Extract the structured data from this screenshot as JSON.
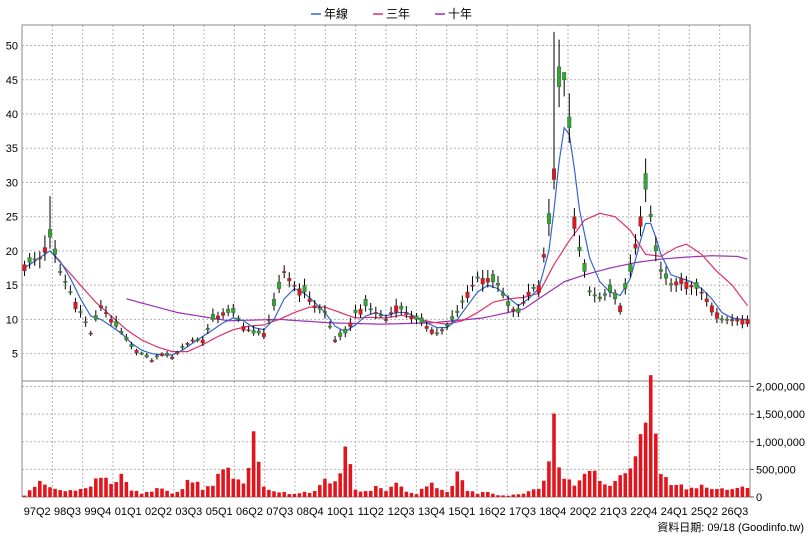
{
  "chart_data": {
    "type": "candlestick",
    "legend": [
      {
        "name": "年線",
        "color": "#3366cc"
      },
      {
        "name": "三年",
        "color": "#e0306a"
      },
      {
        "name": "十年",
        "color": "#9b2fb4"
      }
    ],
    "legend_position": "top-center",
    "grid": true,
    "colors": {
      "up": "#e4141c",
      "down": "#2fa82f",
      "wick": "#000000",
      "volume": "#e4141c"
    },
    "price_axis": {
      "ticks": [
        5,
        10,
        15,
        20,
        25,
        30,
        35,
        40,
        45,
        50
      ],
      "ylim": [
        1,
        53
      ]
    },
    "volume_axis": {
      "ticks": [
        0,
        500000,
        1000000,
        1500000,
        2000000
      ],
      "tick_labels": [
        "0",
        "500,000",
        "1,000,000",
        "1,500,000",
        "2,000,000"
      ],
      "ylim": [
        0,
        2100000
      ]
    },
    "x_tick_labels": [
      "97Q2",
      "98Q3",
      "99Q4",
      "01Q1",
      "02Q2",
      "03Q3",
      "05Q1",
      "06Q2",
      "07Q3",
      "08Q4",
      "10Q1",
      "11Q2",
      "12Q3",
      "13Q4",
      "15Q1",
      "16Q2",
      "17Q3",
      "18Q4",
      "20Q2",
      "21Q3",
      "22Q4",
      "24Q1",
      "25Q2",
      "26Q3"
    ],
    "footer": "資料日期: 09/18 (Goodinfo.tw)",
    "anchors": {
      "close": [
        [
          0,
          18
        ],
        [
          3,
          19
        ],
        [
          5,
          22
        ],
        [
          7,
          17
        ],
        [
          9,
          14
        ],
        [
          11,
          11
        ],
        [
          13,
          8
        ],
        [
          15,
          12
        ],
        [
          17,
          10
        ],
        [
          19,
          8
        ],
        [
          21,
          6
        ],
        [
          23,
          5
        ],
        [
          25,
          4
        ],
        [
          27,
          5
        ],
        [
          29,
          4.5
        ],
        [
          31,
          6
        ],
        [
          33,
          7
        ],
        [
          35,
          7
        ],
        [
          37,
          10
        ],
        [
          39,
          11
        ],
        [
          41,
          11
        ],
        [
          43,
          9
        ],
        [
          45,
          8
        ],
        [
          47,
          8
        ],
        [
          49,
          12
        ],
        [
          51,
          17
        ],
        [
          53,
          15
        ],
        [
          55,
          14
        ],
        [
          57,
          12
        ],
        [
          59,
          11
        ],
        [
          61,
          7
        ],
        [
          63,
          8
        ],
        [
          65,
          11
        ],
        [
          67,
          12
        ],
        [
          69,
          11
        ],
        [
          71,
          10
        ],
        [
          73,
          12
        ],
        [
          75,
          11
        ],
        [
          77,
          10
        ],
        [
          79,
          9
        ],
        [
          81,
          8
        ],
        [
          83,
          9
        ],
        [
          85,
          11
        ],
        [
          87,
          14
        ],
        [
          89,
          16
        ],
        [
          91,
          16
        ],
        [
          93,
          15
        ],
        [
          95,
          12
        ],
        [
          97,
          11
        ],
        [
          99,
          14
        ],
        [
          101,
          15
        ],
        [
          103,
          24
        ],
        [
          104,
          32
        ],
        [
          105,
          44
        ],
        [
          106,
          45
        ],
        [
          107,
          38
        ],
        [
          108,
          25
        ],
        [
          109,
          20
        ],
        [
          111,
          14
        ],
        [
          113,
          13
        ],
        [
          115,
          14
        ],
        [
          117,
          12
        ],
        [
          119,
          17
        ],
        [
          121,
          25
        ],
        [
          122,
          29
        ],
        [
          123,
          25
        ],
        [
          124,
          20
        ],
        [
          125,
          17
        ],
        [
          127,
          15
        ],
        [
          129,
          16
        ],
        [
          131,
          15
        ],
        [
          133,
          14
        ],
        [
          135,
          12
        ],
        [
          137,
          10
        ],
        [
          139,
          10
        ],
        [
          141,
          10
        ],
        [
          142,
          10
        ]
      ],
      "ma1": [
        [
          0,
          17.5
        ],
        [
          3,
          19
        ],
        [
          5,
          20
        ],
        [
          7,
          18.5
        ],
        [
          9,
          16
        ],
        [
          11,
          13
        ],
        [
          13,
          10.5
        ],
        [
          15,
          10
        ],
        [
          17,
          9
        ],
        [
          19,
          8
        ],
        [
          21,
          6.5
        ],
        [
          23,
          5.5
        ],
        [
          25,
          5
        ],
        [
          27,
          4.8
        ],
        [
          29,
          4.8
        ],
        [
          31,
          5.5
        ],
        [
          33,
          6.5
        ],
        [
          35,
          7.5
        ],
        [
          37,
          8.5
        ],
        [
          39,
          9.5
        ],
        [
          41,
          10.2
        ],
        [
          43,
          9.8
        ],
        [
          45,
          8.8
        ],
        [
          47,
          8.5
        ],
        [
          49,
          10
        ],
        [
          51,
          13
        ],
        [
          53,
          14.5
        ],
        [
          55,
          13.8
        ],
        [
          57,
          12.5
        ],
        [
          59,
          11
        ],
        [
          61,
          9
        ],
        [
          63,
          8.2
        ],
        [
          65,
          9.2
        ],
        [
          67,
          10.5
        ],
        [
          69,
          11
        ],
        [
          71,
          10.5
        ],
        [
          73,
          11
        ],
        [
          75,
          11
        ],
        [
          77,
          10.3
        ],
        [
          79,
          9.5
        ],
        [
          81,
          8.8
        ],
        [
          83,
          8.8
        ],
        [
          85,
          10
        ],
        [
          87,
          12
        ],
        [
          89,
          14
        ],
        [
          91,
          15
        ],
        [
          93,
          14.5
        ],
        [
          95,
          13.2
        ],
        [
          97,
          12
        ],
        [
          99,
          13
        ],
        [
          101,
          14.5
        ],
        [
          103,
          20
        ],
        [
          104,
          26
        ],
        [
          105,
          33
        ],
        [
          106,
          38
        ],
        [
          107,
          37
        ],
        [
          108,
          32
        ],
        [
          109,
          26
        ],
        [
          111,
          19
        ],
        [
          113,
          15.5
        ],
        [
          115,
          14
        ],
        [
          117,
          13.5
        ],
        [
          119,
          16
        ],
        [
          121,
          21.5
        ],
        [
          122,
          24
        ],
        [
          123,
          24
        ],
        [
          124,
          22
        ],
        [
          125,
          19.5
        ],
        [
          127,
          16.5
        ],
        [
          129,
          16
        ],
        [
          131,
          15.5
        ],
        [
          133,
          14.5
        ],
        [
          135,
          13
        ],
        [
          137,
          11
        ],
        [
          139,
          10.2
        ],
        [
          141,
          10
        ],
        [
          142,
          10
        ]
      ],
      "ma3": [
        [
          5,
          20
        ],
        [
          8,
          17.5
        ],
        [
          11,
          15
        ],
        [
          14,
          12.5
        ],
        [
          17,
          10.5
        ],
        [
          20,
          8.5
        ],
        [
          23,
          7
        ],
        [
          26,
          6
        ],
        [
          29,
          5.3
        ],
        [
          32,
          5.3
        ],
        [
          35,
          6.3
        ],
        [
          38,
          7.5
        ],
        [
          41,
          8.5
        ],
        [
          44,
          9
        ],
        [
          47,
          9.2
        ],
        [
          50,
          10
        ],
        [
          53,
          11
        ],
        [
          56,
          11.8
        ],
        [
          59,
          11.8
        ],
        [
          62,
          11
        ],
        [
          65,
          10.2
        ],
        [
          68,
          10.3
        ],
        [
          71,
          10.2
        ],
        [
          74,
          10.6
        ],
        [
          77,
          10.2
        ],
        [
          80,
          9.6
        ],
        [
          83,
          9.3
        ],
        [
          86,
          9.8
        ],
        [
          89,
          11
        ],
        [
          92,
          12.5
        ],
        [
          95,
          13
        ],
        [
          98,
          13.2
        ],
        [
          101,
          13.8
        ],
        [
          104,
          18
        ],
        [
          107,
          21.5
        ],
        [
          110,
          24.5
        ],
        [
          113,
          25.5
        ],
        [
          116,
          25
        ],
        [
          119,
          23
        ],
        [
          122,
          19.5
        ],
        [
          125,
          19.2
        ],
        [
          128,
          20.5
        ],
        [
          130,
          21
        ],
        [
          133,
          19.5
        ],
        [
          136,
          17
        ],
        [
          139,
          15
        ],
        [
          142,
          12
        ]
      ],
      "ma10": [
        [
          20,
          13
        ],
        [
          30,
          11
        ],
        [
          40,
          9.8
        ],
        [
          50,
          10
        ],
        [
          60,
          9.5
        ],
        [
          70,
          9.3
        ],
        [
          80,
          9.5
        ],
        [
          90,
          10.2
        ],
        [
          98,
          11.5
        ],
        [
          102,
          13.5
        ],
        [
          106,
          15.5
        ],
        [
          110,
          16.5
        ],
        [
          115,
          17.5
        ],
        [
          120,
          18.3
        ],
        [
          125,
          18.8
        ],
        [
          130,
          19.1
        ],
        [
          135,
          19.3
        ],
        [
          140,
          19.2
        ],
        [
          142,
          18.8
        ]
      ],
      "volume": [
        [
          0,
          30000
        ],
        [
          2,
          180000
        ],
        [
          3,
          380000
        ],
        [
          4,
          280000
        ],
        [
          6,
          120000
        ],
        [
          8,
          140000
        ],
        [
          10,
          110000
        ],
        [
          12,
          150000
        ],
        [
          14,
          350000
        ],
        [
          16,
          400000
        ],
        [
          17,
          240000
        ],
        [
          19,
          350000
        ],
        [
          21,
          120000
        ],
        [
          23,
          60000
        ],
        [
          25,
          100000
        ],
        [
          27,
          160000
        ],
        [
          29,
          60000
        ],
        [
          31,
          150000
        ],
        [
          33,
          350000
        ],
        [
          35,
          120000
        ],
        [
          37,
          230000
        ],
        [
          39,
          580000
        ],
        [
          41,
          340000
        ],
        [
          43,
          270000
        ],
        [
          45,
          1000000
        ],
        [
          47,
          170000
        ],
        [
          49,
          120000
        ],
        [
          51,
          80000
        ],
        [
          53,
          60000
        ],
        [
          55,
          90000
        ],
        [
          57,
          100000
        ],
        [
          59,
          270000
        ],
        [
          61,
          240000
        ],
        [
          63,
          880000
        ],
        [
          65,
          130000
        ],
        [
          67,
          90000
        ],
        [
          69,
          170000
        ],
        [
          71,
          130000
        ],
        [
          73,
          230000
        ],
        [
          75,
          110000
        ],
        [
          77,
          60000
        ],
        [
          79,
          230000
        ],
        [
          81,
          210000
        ],
        [
          83,
          90000
        ],
        [
          85,
          400000
        ],
        [
          87,
          120000
        ],
        [
          89,
          60000
        ],
        [
          91,
          90000
        ],
        [
          93,
          40000
        ],
        [
          95,
          30000
        ],
        [
          97,
          50000
        ],
        [
          99,
          100000
        ],
        [
          101,
          140000
        ],
        [
          103,
          580000
        ],
        [
          104,
          1290000
        ],
        [
          105,
          620000
        ],
        [
          106,
          420000
        ],
        [
          108,
          200000
        ],
        [
          110,
          350000
        ],
        [
          112,
          420000
        ],
        [
          114,
          190000
        ],
        [
          116,
          300000
        ],
        [
          118,
          460000
        ],
        [
          120,
          780000
        ],
        [
          122,
          1100000
        ],
        [
          123,
          2100000
        ],
        [
          124,
          1430000
        ],
        [
          125,
          500000
        ],
        [
          127,
          280000
        ],
        [
          129,
          190000
        ],
        [
          131,
          160000
        ],
        [
          133,
          210000
        ],
        [
          135,
          120000
        ],
        [
          137,
          140000
        ],
        [
          139,
          130000
        ],
        [
          141,
          200000
        ],
        [
          142,
          210000
        ]
      ]
    }
  }
}
